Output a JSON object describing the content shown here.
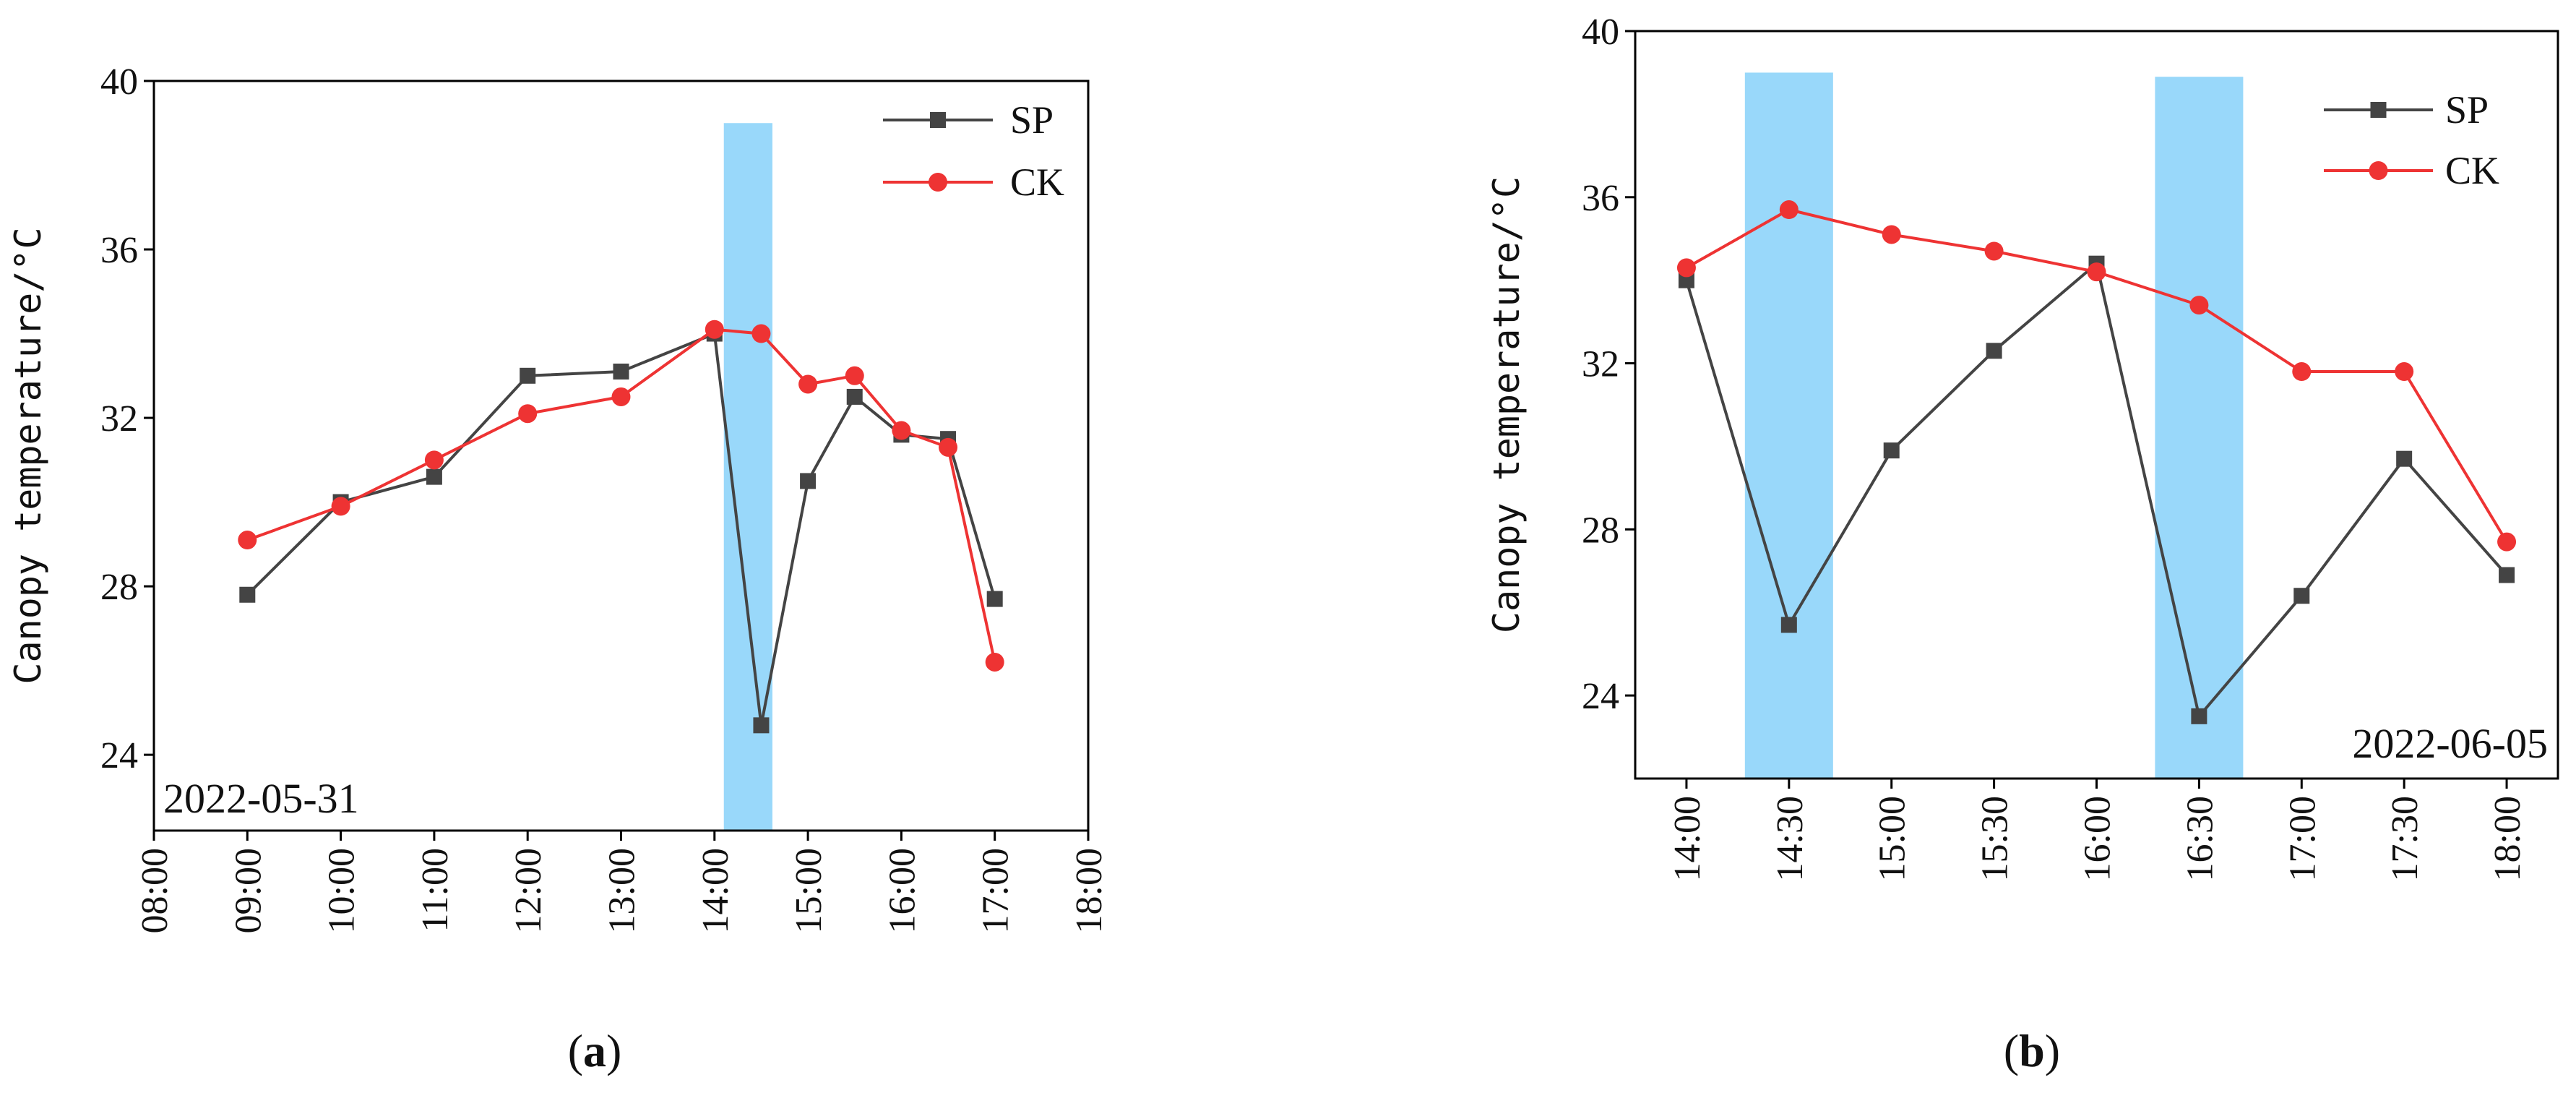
{
  "chart_data": [
    {
      "type": "line",
      "panel_label": "(a)",
      "annotation": "2022-05-31",
      "ylabel": "Canopy temperature/°C",
      "xlabel": "",
      "x_axis_kind": "time_hours",
      "xlim": [
        8,
        18
      ],
      "ylim": [
        22.2,
        40
      ],
      "xticks": [
        8,
        9,
        10,
        11,
        12,
        13,
        14,
        15,
        16,
        17,
        18
      ],
      "xtick_labels": [
        "08:00",
        "09:00",
        "10:00",
        "11:00",
        "12:00",
        "13:00",
        "14:00",
        "15:00",
        "16:00",
        "17:00",
        "18:00"
      ],
      "yticks": [
        24,
        28,
        32,
        36,
        40
      ],
      "ytick_labels": [
        "24",
        "28",
        "32",
        "36",
        "40"
      ],
      "legend_position": "top-right",
      "highlight_bands": [
        {
          "x0": 14.1,
          "x1": 14.62,
          "y_top": 39,
          "color": "#99d8fa"
        }
      ],
      "series": [
        {
          "name": "SP",
          "color": "#444444",
          "marker": "square",
          "x": [
            9,
            10,
            11,
            12,
            13,
            14,
            14.5,
            15,
            15.5,
            16,
            16.5,
            17
          ],
          "values": [
            27.8,
            30.0,
            30.6,
            33.0,
            33.1,
            34.0,
            24.7,
            30.5,
            32.5,
            31.6,
            31.5,
            27.7
          ]
        },
        {
          "name": "CK",
          "color": "#ee3333",
          "marker": "circle",
          "x": [
            9,
            10,
            11,
            12,
            13,
            14,
            14.5,
            15,
            15.5,
            16,
            16.5,
            17
          ],
          "values": [
            29.1,
            29.9,
            31.0,
            32.1,
            32.5,
            34.1,
            34.0,
            32.8,
            33.0,
            31.7,
            31.3,
            26.2
          ]
        }
      ]
    },
    {
      "type": "line",
      "panel_label": "(b)",
      "annotation": "2022-06-05",
      "ylabel": "Canopy temperature/°C",
      "xlabel": "",
      "x_axis_kind": "categorical",
      "xlim": [
        -0.5,
        8.5
      ],
      "ylim": [
        22,
        40
      ],
      "xticks": [
        0,
        1,
        2,
        3,
        4,
        5,
        6,
        7,
        8
      ],
      "xtick_labels": [
        "14:00",
        "14:30",
        "15:00",
        "15:30",
        "16:00",
        "16:30",
        "17:00",
        "17:30",
        "18:00"
      ],
      "yticks": [
        24,
        28,
        32,
        36,
        40
      ],
      "ytick_labels": [
        "24",
        "28",
        "32",
        "36",
        "40"
      ],
      "legend_position": "top-right",
      "highlight_bands": [
        {
          "x0": 0.57,
          "x1": 1.43,
          "y_top": 39,
          "color": "#99d8fa"
        },
        {
          "x0": 4.57,
          "x1": 5.43,
          "y_top": 38.9,
          "color": "#99d8fa"
        }
      ],
      "series": [
        {
          "name": "SP",
          "color": "#444444",
          "marker": "square",
          "x": [
            0,
            1,
            2,
            3,
            4,
            5,
            6,
            7,
            8
          ],
          "values": [
            34.0,
            25.7,
            29.9,
            32.3,
            34.4,
            23.5,
            26.4,
            29.7,
            26.9
          ]
        },
        {
          "name": "CK",
          "color": "#ee3333",
          "marker": "circle",
          "x": [
            0,
            1,
            2,
            3,
            4,
            5,
            6,
            7,
            8
          ],
          "values": [
            34.3,
            35.7,
            35.1,
            34.7,
            34.2,
            33.4,
            31.8,
            31.8,
            27.7
          ]
        }
      ]
    }
  ]
}
